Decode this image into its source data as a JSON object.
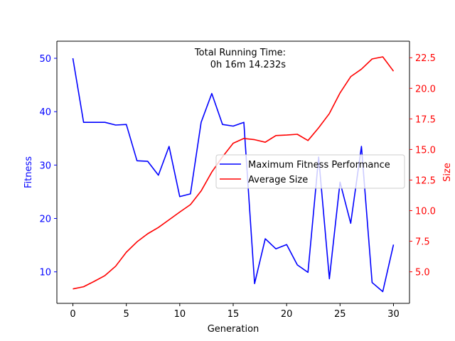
{
  "chart_data": {
    "type": "line",
    "xlabel": "Generation",
    "ylabel_left": "Fitness",
    "ylabel_right": "Size",
    "xlim": [
      -1.5,
      31.5
    ],
    "ylim_left": [
      4.1,
      53.2
    ],
    "ylim_right": [
      2.42,
      23.85
    ],
    "x_ticks": [
      0,
      5,
      10,
      15,
      20,
      25,
      30
    ],
    "y_ticks_left": [
      10,
      20,
      30,
      40,
      50
    ],
    "y_ticks_right": [
      5.0,
      7.5,
      10.0,
      12.5,
      15.0,
      17.5,
      20.0,
      22.5
    ],
    "y_tick_labels_right": [
      "5.0",
      "7.5",
      "10.0",
      "12.5",
      "15.0",
      "17.5",
      "20.0",
      "22.5"
    ],
    "grid": false,
    "legend_position": "center-right",
    "annotation": {
      "line1": "Total Running Time:",
      "line2": "0h 16m 14.232s"
    },
    "x": [
      0,
      1,
      2,
      3,
      4,
      5,
      6,
      7,
      8,
      9,
      10,
      11,
      12,
      13,
      14,
      15,
      16,
      17,
      18,
      19,
      20,
      21,
      22,
      23,
      24,
      25,
      26,
      27,
      28,
      29,
      30
    ],
    "series": [
      {
        "name": "Maximum Fitness Performance",
        "axis": "left",
        "color": "#0000ff",
        "values": [
          50.0,
          38.0,
          38.0,
          38.0,
          37.5,
          37.6,
          30.8,
          30.7,
          28.1,
          33.5,
          24.1,
          24.6,
          38.0,
          43.4,
          37.6,
          37.3,
          38.0,
          7.8,
          16.2,
          14.3,
          15.1,
          11.3,
          9.9,
          31.5,
          8.7,
          26.8,
          19.1,
          33.5,
          8.0,
          6.3,
          15.1
        ]
      },
      {
        "name": "Average Size",
        "axis": "right",
        "color": "#ff0000",
        "values": [
          3.6,
          3.78,
          4.22,
          4.69,
          5.46,
          6.6,
          7.45,
          8.11,
          8.62,
          9.25,
          9.88,
          10.49,
          11.61,
          13.15,
          14.4,
          15.51,
          15.9,
          15.8,
          15.59,
          16.14,
          16.18,
          16.24,
          15.73,
          16.77,
          17.94,
          19.62,
          20.95,
          21.57,
          22.4,
          22.57,
          21.4
        ]
      }
    ]
  }
}
